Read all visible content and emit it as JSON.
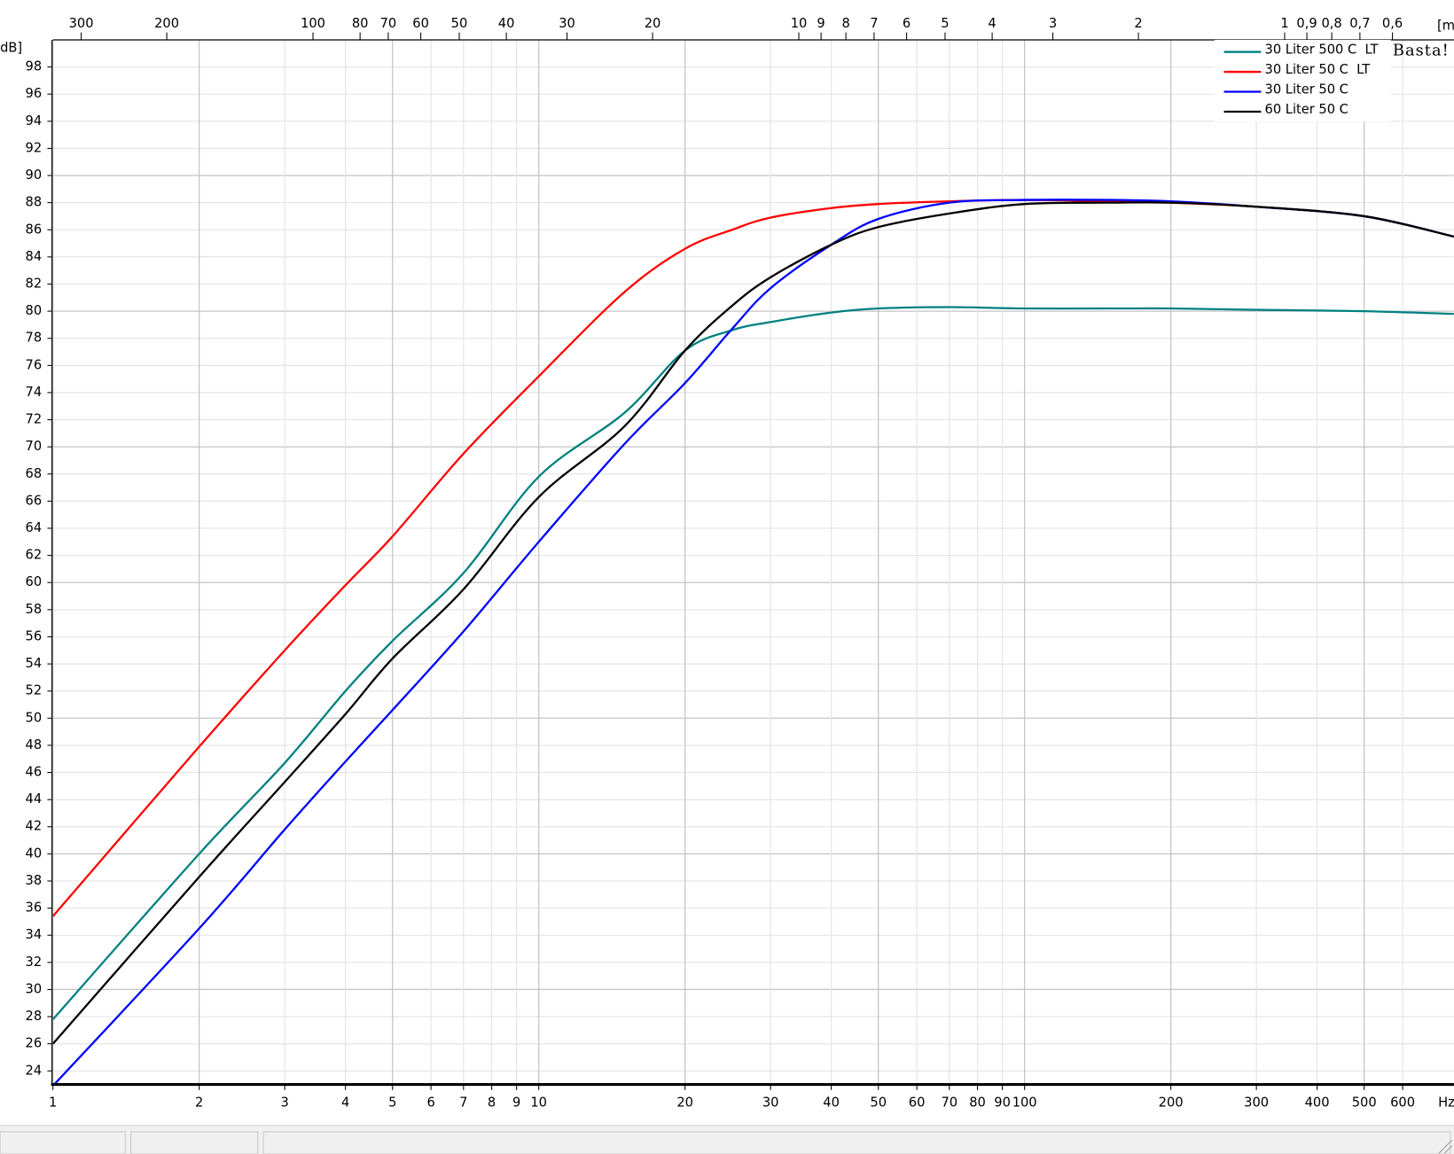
{
  "chart_data": {
    "type": "line",
    "y_label": "dB]",
    "x_unit": "Hz",
    "top_axis_label": "[m",
    "watermark": "Basta!",
    "log_x": true,
    "grid": true,
    "legend": "upper right",
    "xlim": [
      1,
      765
    ],
    "ylim": [
      23,
      100
    ],
    "x": [
      1,
      2,
      3,
      4,
      5,
      7,
      10,
      15,
      20,
      25,
      30,
      40,
      50,
      70,
      100,
      150,
      200,
      300,
      500,
      765
    ],
    "xticks": [
      1,
      2,
      3,
      4,
      5,
      6,
      7,
      8,
      9,
      10,
      20,
      30,
      40,
      50,
      60,
      70,
      80,
      90,
      100,
      200,
      300,
      400,
      500,
      600
    ],
    "yticks": [
      24,
      26,
      28,
      30,
      32,
      34,
      36,
      38,
      40,
      42,
      44,
      46,
      48,
      50,
      52,
      54,
      56,
      58,
      60,
      62,
      64,
      66,
      68,
      70,
      72,
      74,
      76,
      78,
      80,
      82,
      84,
      86,
      88,
      90,
      92,
      94,
      96,
      98
    ],
    "top_ticks": [
      300,
      200,
      100,
      80,
      70,
      60,
      50,
      40,
      30,
      20,
      10,
      9,
      8,
      7,
      6,
      5,
      4,
      3,
      2,
      1,
      {
        "value": 0.9,
        "label": "0,9"
      },
      {
        "value": 0.8,
        "label": "0,8"
      },
      {
        "value": 0.7,
        "label": "0,7"
      },
      {
        "value": 0.6,
        "label": "0,6"
      }
    ],
    "series": [
      {
        "name": "30 Liter 500 C  LT",
        "color": "#008080",
        "values": [
          27.8,
          40.0,
          46.7,
          52.0,
          55.7,
          60.7,
          67.8,
          72.5,
          77.1,
          78.6,
          79.2,
          79.9,
          80.2,
          80.3,
          80.2,
          80.2,
          80.2,
          80.1,
          80.0,
          79.8
        ]
      },
      {
        "name": "30 Liter 50 C  LT",
        "color": "#ff0000",
        "values": [
          35.4,
          47.9,
          55.0,
          59.8,
          63.4,
          69.5,
          75.2,
          81.4,
          84.6,
          86.0,
          86.9,
          87.6,
          87.9,
          88.1,
          88.2,
          88.1,
          88.0,
          87.7,
          87.0,
          85.5
        ]
      },
      {
        "name": "30 Liter 50 C",
        "color": "#0000ff",
        "values": [
          22.9,
          34.5,
          41.8,
          46.8,
          50.6,
          56.4,
          63.0,
          70.2,
          74.7,
          78.7,
          81.7,
          84.9,
          86.8,
          88.0,
          88.2,
          88.2,
          88.1,
          87.7,
          87.0,
          85.5
        ]
      },
      {
        "name": "60 Liter 50 C",
        "color": "#000000",
        "values": [
          26.0,
          38.3,
          45.3,
          50.3,
          54.4,
          59.5,
          66.3,
          71.5,
          77.1,
          80.4,
          82.5,
          84.9,
          86.2,
          87.2,
          87.9,
          88.0,
          88.0,
          87.7,
          87.0,
          85.5
        ]
      }
    ]
  }
}
